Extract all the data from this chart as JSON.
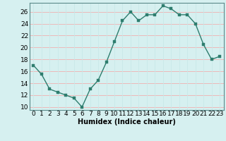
{
  "x": [
    0,
    1,
    2,
    3,
    4,
    5,
    6,
    7,
    8,
    9,
    10,
    11,
    12,
    13,
    14,
    15,
    16,
    17,
    18,
    19,
    20,
    21,
    22,
    23
  ],
  "y": [
    17,
    15.5,
    13,
    12.5,
    12,
    11.5,
    10,
    13,
    14.5,
    17.5,
    21,
    24.5,
    26,
    24.5,
    25.5,
    25.5,
    27,
    26.5,
    25.5,
    25.5,
    24,
    20.5,
    18,
    18.5
  ],
  "line_color": "#2e7d6e",
  "marker_color": "#2e7d6e",
  "bg_color": "#d6f0f0",
  "grid_color_h": "#f0b0b0",
  "grid_color_v": "#c8e8e8",
  "xlabel": "Humidex (Indice chaleur)",
  "xlim": [
    -0.5,
    23.5
  ],
  "ylim": [
    9.5,
    27.5
  ],
  "yticks": [
    10,
    12,
    14,
    16,
    18,
    20,
    22,
    24,
    26
  ],
  "xtick_labels": [
    "0",
    "1",
    "2",
    "3",
    "4",
    "5",
    "6",
    "7",
    "8",
    "9",
    "10",
    "11",
    "12",
    "13",
    "14",
    "15",
    "16",
    "17",
    "18",
    "19",
    "20",
    "21",
    "22",
    "23"
  ],
  "xlabel_fontsize": 7,
  "tick_fontsize": 6.5,
  "linewidth": 1.0,
  "markersize": 2.5
}
